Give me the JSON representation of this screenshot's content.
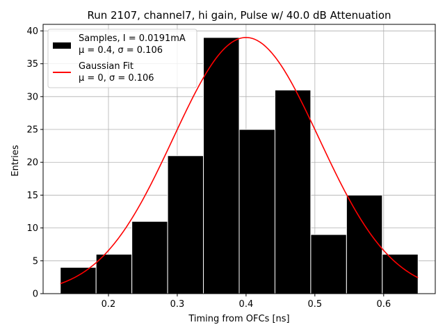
{
  "chart_data": {
    "type": "bar",
    "title": "Run 2107, channel7, hi gain, Pulse w/ 40.0 dB Attenuation",
    "xlabel": "Timing from OFCs [ns]",
    "ylabel": "Entries",
    "xlim": [
      0.105,
      0.675
    ],
    "ylim": [
      0,
      41
    ],
    "xticks": [
      0.2,
      0.3,
      0.4,
      0.5,
      0.6
    ],
    "xtick_labels": [
      "0.2",
      "0.3",
      "0.4",
      "0.5",
      "0.6"
    ],
    "yticks": [
      0,
      5,
      10,
      15,
      20,
      25,
      30,
      35,
      40
    ],
    "ytick_labels": [
      "0",
      "5",
      "10",
      "15",
      "20",
      "25",
      "30",
      "35",
      "40"
    ],
    "grid": true,
    "legend_position": "top-left",
    "histogram": {
      "bin_edges": [
        0.13,
        0.182,
        0.234,
        0.286,
        0.338,
        0.39,
        0.442,
        0.494,
        0.546,
        0.598,
        0.65
      ],
      "counts": [
        4,
        6,
        11,
        21,
        39,
        25,
        31,
        9,
        15,
        6
      ],
      "color": "#000000",
      "edge_color": "#ffffff"
    },
    "fit_curve": {
      "amplitude": 39,
      "mean": 0.4,
      "sigma": 0.106,
      "x_range": [
        0.13,
        0.65
      ],
      "color": "#ff0000"
    },
    "legend": [
      {
        "kind": "patch",
        "line1": "Samples, I = 0.0191mA",
        "line2": "μ = 0.4, σ = 0.106",
        "color": "#000000"
      },
      {
        "kind": "line",
        "line1": "Gaussian Fit",
        "line2": "μ = 0, σ = 0.106",
        "color": "#ff0000"
      }
    ]
  }
}
